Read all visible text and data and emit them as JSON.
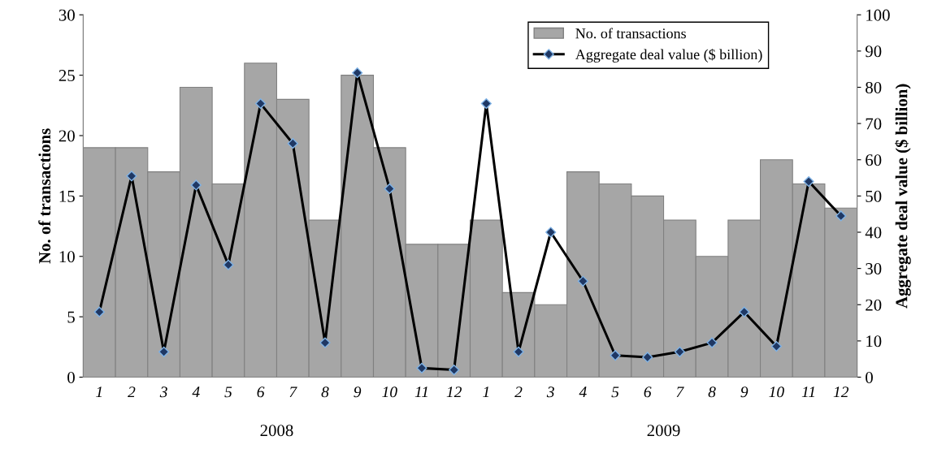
{
  "chart_data": {
    "type": "bar",
    "categories": [
      "1",
      "2",
      "3",
      "4",
      "5",
      "6",
      "7",
      "8",
      "9",
      "10",
      "11",
      "12",
      "1",
      "2",
      "3",
      "4",
      "5",
      "6",
      "7",
      "8",
      "9",
      "10",
      "11",
      "12"
    ],
    "series": [
      {
        "name": "No. of transactions",
        "color": "#a6a6a6",
        "values": [
          19,
          19,
          17,
          24,
          16,
          26,
          23,
          13,
          25,
          19,
          11,
          11,
          13,
          7,
          6,
          17,
          16,
          15,
          13,
          10,
          13,
          18,
          16,
          14
        ]
      },
      {
        "name": "Aggregate deal value ($ billion)",
        "type": "line",
        "axis": "y2",
        "color": "#000000",
        "values": [
          18,
          55.5,
          7,
          53,
          31,
          75.5,
          64.5,
          9.5,
          84,
          52,
          2.5,
          2,
          75.5,
          7,
          40,
          26.5,
          6,
          5.5,
          7,
          9.5,
          18,
          8.5,
          54,
          44.5
        ]
      }
    ],
    "ylabel": "No. of transactions",
    "y2label": "Aggregate deal value ($ billion)",
    "ylim": [
      0,
      30
    ],
    "yticks": [
      0,
      5,
      10,
      15,
      20,
      25,
      30
    ],
    "y2lim": [
      0,
      100
    ],
    "y2ticks": [
      0,
      10,
      20,
      30,
      40,
      50,
      60,
      70,
      80,
      90,
      100
    ],
    "annotations": [
      "2008",
      "2009"
    ],
    "marker": "diamond",
    "line_style": "solid",
    "grid": false,
    "legend": "top right"
  }
}
